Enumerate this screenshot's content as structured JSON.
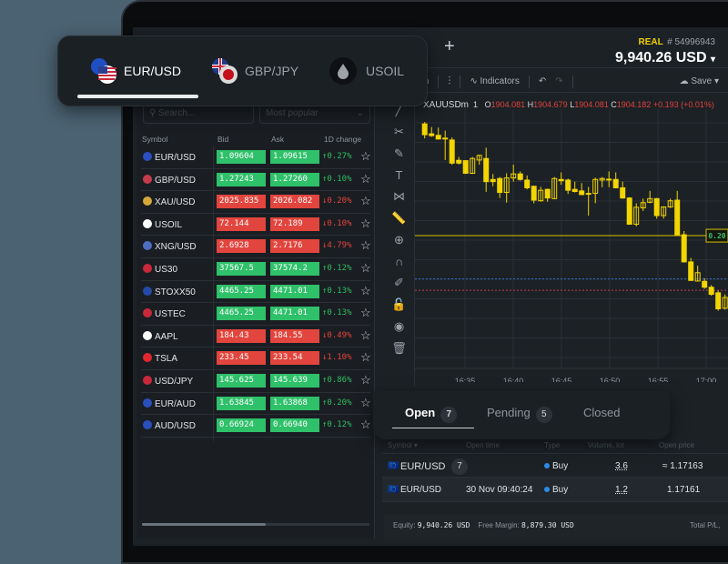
{
  "header": {
    "add_tab_label": "+",
    "account_type": "REAL",
    "account_number": "# 54996943",
    "balance": "9,940.26 USD",
    "balance_caret": "▾"
  },
  "instrument_tabs": [
    {
      "label": "EUR/USD",
      "icon": "eur-usd-flag-icon",
      "active": true
    },
    {
      "label": "GBP/JPY",
      "icon": "gbp-jpy-flag-icon",
      "active": false
    },
    {
      "label": "USOIL",
      "icon": "oil-drop-icon",
      "active": false
    }
  ],
  "toolbar": {
    "timeframe": "m",
    "indicators_label": "Indicators",
    "save_label": "Save"
  },
  "chart_header": {
    "symbol": "XAUUSDm",
    "interval": "1",
    "o_label": "O",
    "o": "1904.081",
    "h_label": "H",
    "h": "1904.679",
    "l_label": "L",
    "l": "1904.081",
    "c_label": "C",
    "c": "1904.182",
    "change": "+0.193 (+0.01%)"
  },
  "watchlist": {
    "search_placeholder": "Search...",
    "filter": "Most popular",
    "columns": [
      "Symbol",
      "Bid",
      "Ask",
      "1D change"
    ],
    "rows": [
      {
        "symbol": "EUR/USD",
        "bid": "1.09604",
        "ask": "1.09615",
        "change": "↑0.27%",
        "dir": "up"
      },
      {
        "symbol": "GBP/USD",
        "bid": "1.27243",
        "ask": "1.27260",
        "change": "↑0.10%",
        "dir": "up"
      },
      {
        "symbol": "XAU/USD",
        "bid": "2025.835",
        "ask": "2026.082",
        "change": "↓0.20%",
        "dir": "down"
      },
      {
        "symbol": "USOIL",
        "bid": "72.144",
        "ask": "72.189",
        "change": "↓0.10%",
        "dir": "down"
      },
      {
        "symbol": "XNG/USD",
        "bid": "2.6928",
        "ask": "2.7176",
        "change": "↓4.79%",
        "dir": "down"
      },
      {
        "symbol": "US30",
        "bid": "37567.5",
        "ask": "37574.2",
        "change": "↑0.12%",
        "dir": "up"
      },
      {
        "symbol": "STOXX50",
        "bid": "4465.25",
        "ask": "4471.01",
        "change": "↑0.13%",
        "dir": "up"
      },
      {
        "symbol": "USTEC",
        "bid": "4465.25",
        "ask": "4471.01",
        "change": "↑0.13%",
        "dir": "up"
      },
      {
        "symbol": "AAPL",
        "bid": "184.43",
        "ask": "184.55",
        "change": "↓0.49%",
        "dir": "down"
      },
      {
        "symbol": "TSLA",
        "bid": "233.45",
        "ask": "233.54",
        "change": "↓1.10%",
        "dir": "down"
      },
      {
        "symbol": "USD/JPY",
        "bid": "145.625",
        "ask": "145.639",
        "change": "↑0.86%",
        "dir": "up"
      },
      {
        "symbol": "EUR/AUD",
        "bid": "1.63845",
        "ask": "1.63868",
        "change": "↑0.20%",
        "dir": "up"
      },
      {
        "symbol": "AUD/USD",
        "bid": "0.66924",
        "ask": "0.66940",
        "change": "↑0.12%",
        "dir": "up"
      }
    ]
  },
  "colors": {
    "up": "#2ebd5f",
    "down": "#e5433b",
    "up_bg": "#2fc06a",
    "down_bg": "#e2453d",
    "candle": "#f3d500",
    "accent_real": "#f0d000"
  },
  "chart_data": {
    "type": "candlestick",
    "time_ticks": [
      "16:35",
      "16:40",
      "16:45",
      "16:50",
      "16:55",
      "17:00"
    ],
    "ylim": [
      1904.13,
      1904.955
    ],
    "price_line": {
      "price": 1904.56,
      "label": "0.20"
    },
    "blue_line": 1904.42,
    "red_line": 1904.383,
    "ohlc": [
      [
        1904.922,
        1904.928,
        1904.875,
        1904.887
      ],
      [
        1904.89,
        1904.912,
        1904.88,
        1904.884
      ],
      [
        1904.885,
        1904.91,
        1904.872,
        1904.873
      ],
      [
        1904.876,
        1904.9,
        1904.805,
        1904.874
      ],
      [
        1904.87,
        1904.878,
        1904.79,
        1904.795
      ],
      [
        1904.804,
        1904.815,
        1904.79,
        1904.795
      ],
      [
        1904.803,
        1904.805,
        1904.76,
        1904.762
      ],
      [
        1904.762,
        1904.815,
        1904.76,
        1904.81
      ],
      [
        1904.805,
        1904.822,
        1904.79,
        1904.82
      ],
      [
        1904.81,
        1904.845,
        1904.702,
        1904.735
      ],
      [
        1904.742,
        1904.76,
        1904.72,
        1904.735
      ],
      [
        1904.745,
        1904.75,
        1904.682,
        1904.7
      ],
      [
        1904.7,
        1904.762,
        1904.667,
        1904.747
      ],
      [
        1904.747,
        1904.79,
        1904.735,
        1904.76
      ],
      [
        1904.76,
        1904.768,
        1904.738,
        1904.742
      ],
      [
        1904.74,
        1904.755,
        1904.71,
        1904.715
      ],
      [
        1904.72,
        1904.722,
        1904.665,
        1904.675
      ],
      [
        1904.673,
        1904.718,
        1904.67,
        1904.707
      ],
      [
        1904.71,
        1904.712,
        1904.67,
        1904.682
      ],
      [
        1904.68,
        1904.75,
        1904.678,
        1904.745
      ],
      [
        1904.742,
        1904.765,
        1904.725,
        1904.738
      ],
      [
        1904.74,
        1904.745,
        1904.695,
        1904.707
      ],
      [
        1904.71,
        1904.735,
        1904.7,
        1904.703
      ],
      [
        1904.705,
        1904.73,
        1904.692,
        1904.693
      ],
      [
        1904.697,
        1904.718,
        1904.625,
        1904.694
      ],
      [
        1904.697,
        1904.748,
        1904.665,
        1904.742
      ],
      [
        1904.74,
        1904.75,
        1904.717,
        1904.745
      ],
      [
        1904.743,
        1904.768,
        1904.717,
        1904.74
      ],
      [
        1904.742,
        1904.765,
        1904.713,
        1904.715
      ],
      [
        1904.715,
        1904.735,
        1904.68,
        1904.682
      ],
      [
        1904.682,
        1904.685,
        1904.595,
        1904.597
      ],
      [
        1904.597,
        1904.665,
        1904.59,
        1904.652
      ],
      [
        1904.65,
        1904.68,
        1904.64,
        1904.667
      ],
      [
        1904.668,
        1904.705,
        1904.665,
        1904.68
      ],
      [
        1904.68,
        1904.682,
        1904.615,
        1904.625
      ],
      [
        1904.625,
        1904.655,
        1904.615,
        1904.653
      ],
      [
        1904.653,
        1904.68,
        1904.65,
        1904.673
      ],
      [
        1904.675,
        1904.705,
        1904.563,
        1904.563
      ],
      [
        1904.563,
        1904.575,
        1904.473,
        1904.475
      ],
      [
        1904.475,
        1904.488,
        1904.413,
        1904.415
      ],
      [
        1904.413,
        1904.463,
        1904.412,
        1904.44
      ],
      [
        1904.412,
        1904.422,
        1904.388,
        1904.393
      ],
      [
        1904.393,
        1904.4,
        1904.365,
        1904.37
      ],
      [
        1904.375,
        1904.382,
        1904.317,
        1904.323
      ],
      [
        1904.325,
        1904.37,
        1904.32,
        1904.36
      ]
    ]
  },
  "positions_tabs": [
    {
      "label": "Open",
      "count": "7",
      "active": true
    },
    {
      "label": "Pending",
      "count": "5",
      "active": false
    },
    {
      "label": "Closed",
      "active": false
    }
  ],
  "positions": {
    "columns": [
      "Symbol ▾",
      "Open time",
      "Type",
      "Volume, lot",
      "Open price"
    ],
    "rows": [
      {
        "symbol": "EUR/USD",
        "count": "7",
        "time": "",
        "type": "Buy",
        "volume": "3.6",
        "price": "≈ 1.17163"
      },
      {
        "symbol": "EUR/USD",
        "time": "30 Nov 09:40:24",
        "type": "Buy",
        "volume": "1.2",
        "price": "1.17161"
      }
    ]
  },
  "footer": {
    "equity_label": "Equity:",
    "equity": "9,940.26 USD",
    "margin_label": "Free Margin:",
    "margin": "8,879.30 USD",
    "total_label": "Total P/L, "
  }
}
